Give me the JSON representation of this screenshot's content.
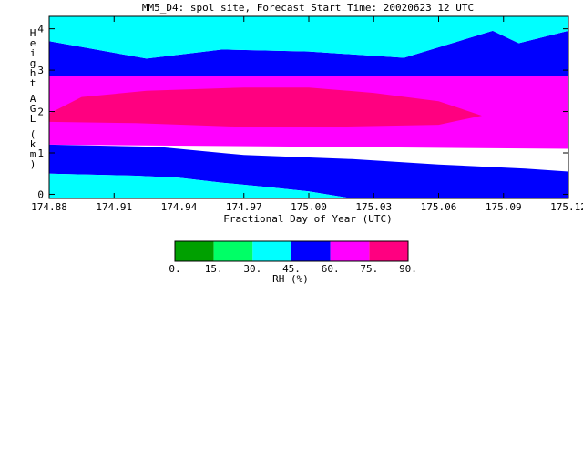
{
  "chart_data": {
    "type": "heatmap",
    "title": "MM5_D4: spol site,  Forecast Start Time: 20020623 12 UTC",
    "xlabel": "Fractional Day of Year (UTC)",
    "ylabel": "Height AGL (km)",
    "x_ticks": [
      "174.88",
      "174.91",
      "174.94",
      "174.97",
      "175.00",
      "175.03",
      "175.06",
      "175.09",
      "175.12"
    ],
    "x_tick_values": [
      174.88,
      174.91,
      174.94,
      174.97,
      175.0,
      175.03,
      175.06,
      175.09,
      175.12
    ],
    "y_ticks": [
      "0",
      "1",
      "2",
      "3",
      "4"
    ],
    "y_tick_values": [
      0,
      1,
      2,
      3,
      4
    ],
    "xlim": [
      174.88,
      175.12
    ],
    "ylim": [
      -0.1,
      4.3
    ],
    "colorbar": {
      "label": "RH (%)",
      "tick_labels": [
        "0.",
        "15.",
        "30.",
        "45.",
        "60.",
        "75.",
        "90."
      ],
      "bins": [
        {
          "range": [
            0,
            15
          ],
          "color": "#00a000"
        },
        {
          "range": [
            15,
            30
          ],
          "color": "#00ff66"
        },
        {
          "range": [
            30,
            45
          ],
          "color": "#00ffff"
        },
        {
          "range": [
            45,
            60
          ],
          "color": "#0000ff"
        },
        {
          "range": [
            60,
            75
          ],
          "color": "#ff00ff"
        },
        {
          "range": [
            75,
            90
          ],
          "color": "#ff0080"
        }
      ]
    },
    "regions": [
      {
        "rh_bin": [
          60,
          75
        ],
        "color": "#ff00ff",
        "polygon": [
          [
            174.88,
            1.2
          ],
          [
            175.12,
            1.1
          ],
          [
            175.12,
            2.85
          ],
          [
            174.88,
            2.85
          ]
        ]
      },
      {
        "rh_bin": [
          75,
          90
        ],
        "color": "#ff0080",
        "polygon": [
          [
            174.88,
            1.95
          ],
          [
            174.895,
            2.35
          ],
          [
            174.925,
            2.5
          ],
          [
            174.97,
            2.58
          ],
          [
            175.0,
            2.58
          ],
          [
            175.03,
            2.45
          ],
          [
            175.06,
            2.25
          ],
          [
            175.08,
            1.9
          ],
          [
            175.06,
            1.68
          ],
          [
            175.0,
            1.62
          ],
          [
            174.97,
            1.63
          ],
          [
            174.92,
            1.72
          ],
          [
            174.88,
            1.75
          ]
        ]
      },
      {
        "rh_bin": [
          45,
          60
        ],
        "color": "#0000ff",
        "polygon": [
          [
            174.88,
            0.5
          ],
          [
            174.92,
            0.45
          ],
          [
            174.94,
            0.4
          ],
          [
            174.96,
            0.28
          ],
          [
            174.98,
            0.18
          ],
          [
            175.0,
            0.07
          ],
          [
            175.02,
            -0.1
          ],
          [
            175.12,
            -0.1
          ],
          [
            175.12,
            0.55
          ],
          [
            175.1,
            0.62
          ],
          [
            175.06,
            0.72
          ],
          [
            175.02,
            0.85
          ],
          [
            174.97,
            0.95
          ],
          [
            174.93,
            1.15
          ],
          [
            174.88,
            1.2
          ]
        ]
      },
      {
        "rh_bin": [
          45,
          60
        ],
        "color": "#0000ff",
        "polygon": [
          [
            174.88,
            2.85
          ],
          [
            175.12,
            2.85
          ],
          [
            175.12,
            3.95
          ],
          [
            175.097,
            3.65
          ],
          [
            175.085,
            3.95
          ],
          [
            175.044,
            3.3
          ],
          [
            175.0,
            3.45
          ],
          [
            174.96,
            3.5
          ],
          [
            174.925,
            3.28
          ],
          [
            174.88,
            3.7
          ]
        ]
      },
      {
        "rh_bin": [
          30,
          45
        ],
        "color": "#00ffff",
        "polygon": [
          [
            174.88,
            3.7
          ],
          [
            174.925,
            3.28
          ],
          [
            174.96,
            3.5
          ],
          [
            175.0,
            3.45
          ],
          [
            175.044,
            3.3
          ],
          [
            175.085,
            3.95
          ],
          [
            175.097,
            3.65
          ],
          [
            175.12,
            3.95
          ],
          [
            175.12,
            4.3
          ],
          [
            174.88,
            4.3
          ]
        ]
      },
      {
        "rh_bin": [
          30,
          45
        ],
        "color": "#00ffff",
        "polygon": [
          [
            174.88,
            -0.1
          ],
          [
            175.02,
            -0.1
          ],
          [
            175.0,
            0.07
          ],
          [
            174.98,
            0.18
          ],
          [
            174.96,
            0.28
          ],
          [
            174.94,
            0.4
          ],
          [
            174.92,
            0.45
          ],
          [
            174.88,
            0.5
          ]
        ]
      }
    ]
  }
}
